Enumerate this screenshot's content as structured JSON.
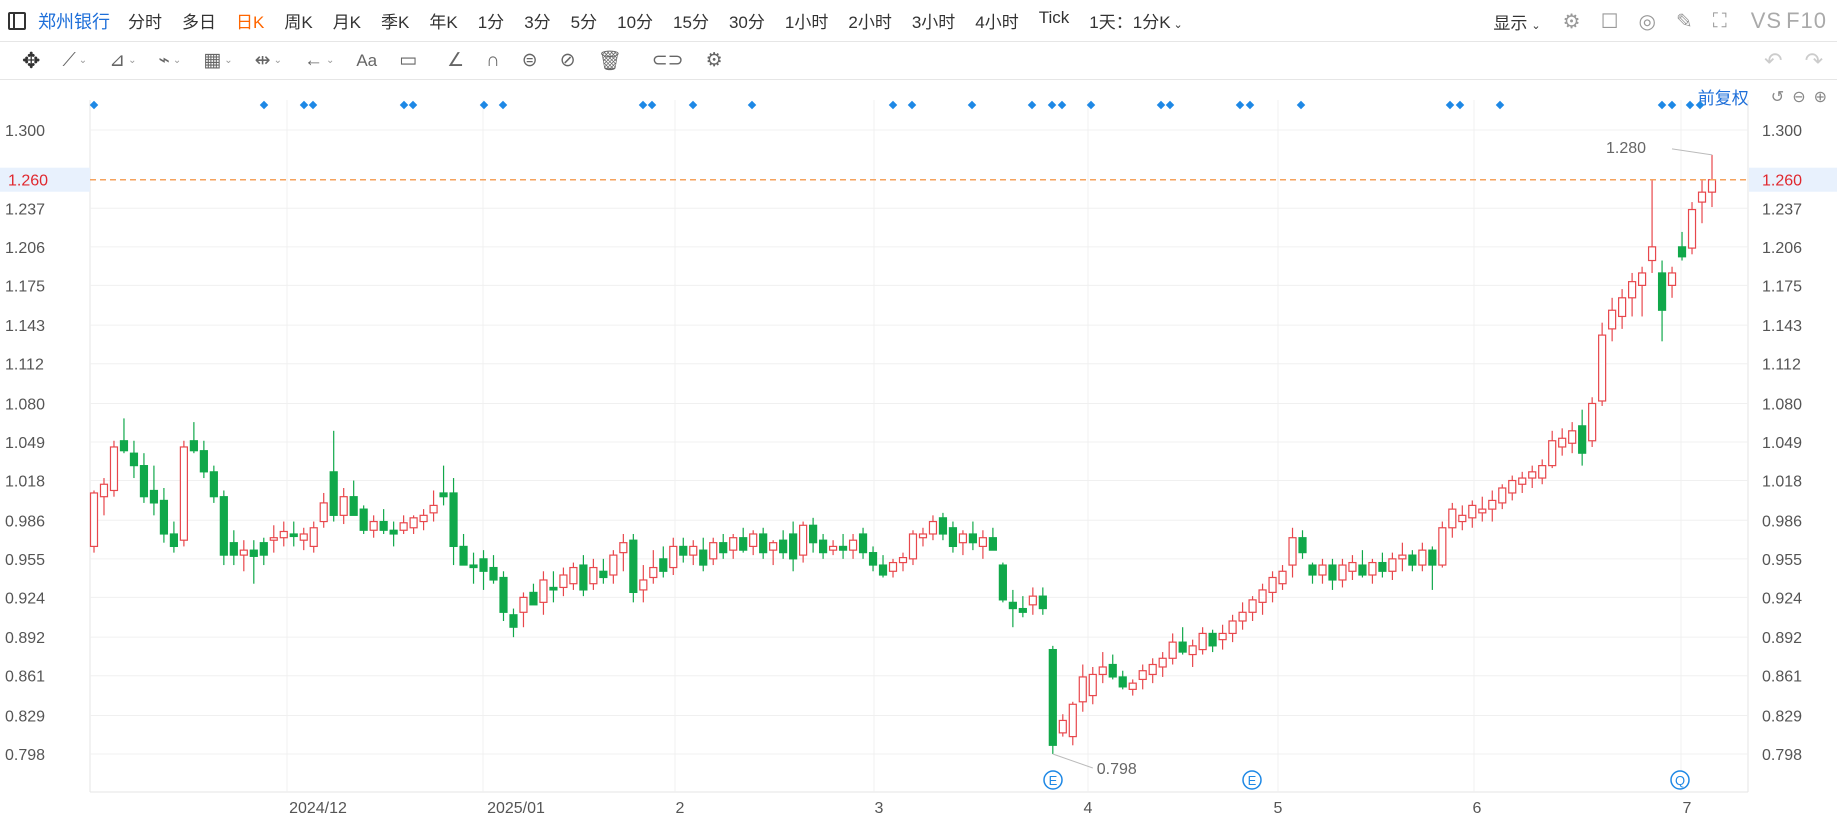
{
  "header": {
    "symbol": "郑州银行",
    "periods": [
      {
        "label": "分时"
      },
      {
        "label": "多日"
      },
      {
        "label": "日K",
        "active": true
      },
      {
        "label": "周K"
      },
      {
        "label": "月K"
      },
      {
        "label": "季K"
      },
      {
        "label": "年K"
      },
      {
        "label": "1分"
      },
      {
        "label": "3分"
      },
      {
        "label": "5分"
      },
      {
        "label": "10分"
      },
      {
        "label": "15分"
      },
      {
        "label": "30分"
      },
      {
        "label": "1小时"
      },
      {
        "label": "2小时"
      },
      {
        "label": "3小时"
      },
      {
        "label": "4小时"
      },
      {
        "label": "Tick"
      },
      {
        "label": "1天：1分K"
      }
    ],
    "display_label": "显示",
    "vs_label": "VS",
    "f10_label": "F10"
  },
  "adjust_label": "前复权",
  "colors": {
    "up": "#e8474c",
    "down": "#10a84a",
    "marker": "#1e88e5",
    "price_line": "#f5a25d",
    "accent": "#1e6fd9"
  },
  "chart_data": {
    "type": "candlestick",
    "ylim": [
      0.78,
      1.31
    ],
    "y_ticks": [
      0.798,
      0.829,
      0.861,
      0.892,
      0.924,
      0.955,
      0.986,
      1.018,
      1.049,
      1.08,
      1.112,
      1.143,
      1.175,
      1.206,
      1.237,
      1.3
    ],
    "current_price": 1.26,
    "x_labels": [
      "2024/12",
      "2025/01",
      "2",
      "3",
      "4",
      "5",
      "6",
      "7"
    ],
    "high_annotation": "1.280",
    "low_annotation": "0.798",
    "event_markers": [
      "E",
      "E",
      "Q"
    ],
    "ohlc": [
      [
        0.965,
        1.01,
        0.96,
        1.008
      ],
      [
        1.005,
        1.02,
        0.99,
        1.015
      ],
      [
        1.01,
        1.05,
        1.005,
        1.045
      ],
      [
        1.05,
        1.068,
        1.04,
        1.042
      ],
      [
        1.04,
        1.05,
        1.02,
        1.03
      ],
      [
        1.03,
        1.04,
        1.0,
        1.005
      ],
      [
        1.01,
        1.03,
        0.99,
        1.0
      ],
      [
        1.002,
        1.012,
        0.968,
        0.975
      ],
      [
        0.975,
        0.985,
        0.96,
        0.965
      ],
      [
        0.97,
        1.05,
        0.965,
        1.045
      ],
      [
        1.05,
        1.065,
        1.04,
        1.042
      ],
      [
        1.042,
        1.05,
        1.02,
        1.025
      ],
      [
        1.025,
        1.03,
        1.0,
        1.005
      ],
      [
        1.005,
        1.01,
        0.95,
        0.958
      ],
      [
        0.968,
        0.978,
        0.95,
        0.958
      ],
      [
        0.958,
        0.97,
        0.945,
        0.962
      ],
      [
        0.962,
        0.97,
        0.935,
        0.957
      ],
      [
        0.968,
        0.972,
        0.95,
        0.958
      ],
      [
        0.97,
        0.982,
        0.96,
        0.972
      ],
      [
        0.972,
        0.985,
        0.965,
        0.977
      ],
      [
        0.975,
        0.985,
        0.965,
        0.973
      ],
      [
        0.97,
        0.98,
        0.962,
        0.975
      ],
      [
        0.965,
        0.985,
        0.96,
        0.98
      ],
      [
        0.985,
        1.008,
        0.98,
        1.0
      ],
      [
        1.025,
        1.058,
        0.985,
        0.99
      ],
      [
        0.99,
        1.012,
        0.983,
        1.005
      ],
      [
        1.005,
        1.018,
        0.99,
        0.99
      ],
      [
        0.995,
        0.998,
        0.975,
        0.978
      ],
      [
        0.978,
        0.99,
        0.972,
        0.985
      ],
      [
        0.985,
        0.995,
        0.975,
        0.978
      ],
      [
        0.978,
        0.985,
        0.965,
        0.975
      ],
      [
        0.978,
        0.99,
        0.975,
        0.984
      ],
      [
        0.98,
        0.99,
        0.975,
        0.988
      ],
      [
        0.985,
        0.995,
        0.978,
        0.99
      ],
      [
        0.992,
        1.01,
        0.985,
        0.998
      ],
      [
        1.008,
        1.03,
        0.998,
        1.005
      ],
      [
        1.008,
        1.02,
        0.95,
        0.965
      ],
      [
        0.965,
        0.975,
        0.95,
        0.95
      ],
      [
        0.95,
        0.96,
        0.935,
        0.948
      ],
      [
        0.955,
        0.962,
        0.93,
        0.945
      ],
      [
        0.948,
        0.958,
        0.935,
        0.938
      ],
      [
        0.94,
        0.945,
        0.905,
        0.912
      ],
      [
        0.91,
        0.915,
        0.892,
        0.9
      ],
      [
        0.912,
        0.928,
        0.9,
        0.924
      ],
      [
        0.928,
        0.935,
        0.918,
        0.918
      ],
      [
        0.92,
        0.945,
        0.91,
        0.938
      ],
      [
        0.932,
        0.945,
        0.92,
        0.93
      ],
      [
        0.932,
        0.948,
        0.925,
        0.942
      ],
      [
        0.935,
        0.952,
        0.93,
        0.948
      ],
      [
        0.95,
        0.958,
        0.925,
        0.93
      ],
      [
        0.935,
        0.955,
        0.93,
        0.948
      ],
      [
        0.945,
        0.955,
        0.935,
        0.94
      ],
      [
        0.942,
        0.962,
        0.935,
        0.958
      ],
      [
        0.96,
        0.975,
        0.945,
        0.968
      ],
      [
        0.97,
        0.975,
        0.92,
        0.928
      ],
      [
        0.93,
        0.95,
        0.92,
        0.938
      ],
      [
        0.94,
        0.962,
        0.935,
        0.948
      ],
      [
        0.955,
        0.965,
        0.94,
        0.945
      ],
      [
        0.948,
        0.972,
        0.942,
        0.965
      ],
      [
        0.965,
        0.972,
        0.952,
        0.958
      ],
      [
        0.958,
        0.97,
        0.95,
        0.965
      ],
      [
        0.962,
        0.972,
        0.945,
        0.95
      ],
      [
        0.955,
        0.972,
        0.95,
        0.968
      ],
      [
        0.968,
        0.975,
        0.955,
        0.96
      ],
      [
        0.962,
        0.975,
        0.955,
        0.972
      ],
      [
        0.972,
        0.98,
        0.96,
        0.962
      ],
      [
        0.965,
        0.978,
        0.958,
        0.975
      ],
      [
        0.975,
        0.98,
        0.955,
        0.96
      ],
      [
        0.962,
        0.97,
        0.95,
        0.968
      ],
      [
        0.97,
        0.978,
        0.955,
        0.96
      ],
      [
        0.975,
        0.985,
        0.945,
        0.955
      ],
      [
        0.958,
        0.985,
        0.952,
        0.982
      ],
      [
        0.982,
        0.988,
        0.96,
        0.968
      ],
      [
        0.97,
        0.975,
        0.955,
        0.96
      ],
      [
        0.962,
        0.97,
        0.958,
        0.965
      ],
      [
        0.965,
        0.975,
        0.955,
        0.962
      ],
      [
        0.962,
        0.975,
        0.955,
        0.97
      ],
      [
        0.975,
        0.98,
        0.955,
        0.96
      ],
      [
        0.96,
        0.965,
        0.945,
        0.95
      ],
      [
        0.95,
        0.958,
        0.94,
        0.942
      ],
      [
        0.945,
        0.955,
        0.94,
        0.952
      ],
      [
        0.952,
        0.96,
        0.945,
        0.956
      ],
      [
        0.955,
        0.978,
        0.95,
        0.975
      ],
      [
        0.972,
        0.98,
        0.965,
        0.975
      ],
      [
        0.975,
        0.99,
        0.97,
        0.985
      ],
      [
        0.988,
        0.992,
        0.97,
        0.975
      ],
      [
        0.98,
        0.985,
        0.96,
        0.965
      ],
      [
        0.968,
        0.978,
        0.958,
        0.975
      ],
      [
        0.975,
        0.985,
        0.962,
        0.968
      ],
      [
        0.965,
        0.978,
        0.955,
        0.972
      ],
      [
        0.972,
        0.98,
        0.962,
        0.962
      ],
      [
        0.95,
        0.952,
        0.92,
        0.922
      ],
      [
        0.92,
        0.93,
        0.9,
        0.915
      ],
      [
        0.915,
        0.925,
        0.908,
        0.912
      ],
      [
        0.918,
        0.932,
        0.91,
        0.925
      ],
      [
        0.925,
        0.932,
        0.91,
        0.915
      ],
      [
        0.882,
        0.885,
        0.798,
        0.805
      ],
      [
        0.815,
        0.83,
        0.812,
        0.825
      ],
      [
        0.812,
        0.84,
        0.805,
        0.838
      ],
      [
        0.84,
        0.87,
        0.832,
        0.86
      ],
      [
        0.845,
        0.868,
        0.838,
        0.862
      ],
      [
        0.862,
        0.88,
        0.855,
        0.868
      ],
      [
        0.87,
        0.878,
        0.858,
        0.86
      ],
      [
        0.86,
        0.865,
        0.85,
        0.852
      ],
      [
        0.85,
        0.858,
        0.845,
        0.855
      ],
      [
        0.858,
        0.87,
        0.85,
        0.865
      ],
      [
        0.862,
        0.875,
        0.855,
        0.87
      ],
      [
        0.868,
        0.88,
        0.86,
        0.875
      ],
      [
        0.875,
        0.895,
        0.87,
        0.888
      ],
      [
        0.888,
        0.9,
        0.878,
        0.88
      ],
      [
        0.878,
        0.89,
        0.868,
        0.885
      ],
      [
        0.882,
        0.9,
        0.878,
        0.895
      ],
      [
        0.895,
        0.898,
        0.88,
        0.885
      ],
      [
        0.89,
        0.902,
        0.882,
        0.895
      ],
      [
        0.895,
        0.91,
        0.888,
        0.905
      ],
      [
        0.905,
        0.92,
        0.898,
        0.912
      ],
      [
        0.912,
        0.925,
        0.905,
        0.922
      ],
      [
        0.92,
        0.935,
        0.91,
        0.93
      ],
      [
        0.928,
        0.945,
        0.92,
        0.94
      ],
      [
        0.935,
        0.95,
        0.93,
        0.945
      ],
      [
        0.95,
        0.98,
        0.94,
        0.972
      ],
      [
        0.972,
        0.978,
        0.955,
        0.96
      ],
      [
        0.95,
        0.952,
        0.935,
        0.942
      ],
      [
        0.942,
        0.955,
        0.935,
        0.95
      ],
      [
        0.95,
        0.955,
        0.93,
        0.938
      ],
      [
        0.938,
        0.955,
        0.932,
        0.95
      ],
      [
        0.945,
        0.958,
        0.938,
        0.952
      ],
      [
        0.95,
        0.962,
        0.94,
        0.942
      ],
      [
        0.942,
        0.955,
        0.935,
        0.952
      ],
      [
        0.952,
        0.96,
        0.94,
        0.945
      ],
      [
        0.945,
        0.96,
        0.938,
        0.955
      ],
      [
        0.955,
        0.968,
        0.945,
        0.958
      ],
      [
        0.958,
        0.962,
        0.945,
        0.95
      ],
      [
        0.95,
        0.968,
        0.945,
        0.962
      ],
      [
        0.962,
        0.965,
        0.93,
        0.95
      ],
      [
        0.95,
        0.985,
        0.948,
        0.98
      ],
      [
        0.98,
        1.0,
        0.972,
        0.995
      ],
      [
        0.985,
        0.998,
        0.978,
        0.99
      ],
      [
        0.988,
        1.002,
        0.98,
        0.998
      ],
      [
        0.992,
        1.005,
        0.985,
        0.995
      ],
      [
        0.995,
        1.01,
        0.985,
        1.002
      ],
      [
        1.0,
        1.015,
        0.995,
        1.012
      ],
      [
        1.008,
        1.022,
        1.002,
        1.018
      ],
      [
        1.015,
        1.025,
        1.008,
        1.02
      ],
      [
        1.02,
        1.03,
        1.012,
        1.025
      ],
      [
        1.02,
        1.035,
        1.015,
        1.03
      ],
      [
        1.03,
        1.058,
        1.028,
        1.05
      ],
      [
        1.045,
        1.06,
        1.038,
        1.052
      ],
      [
        1.048,
        1.065,
        1.04,
        1.058
      ],
      [
        1.062,
        1.075,
        1.03,
        1.04
      ],
      [
        1.05,
        1.085,
        1.045,
        1.08
      ],
      [
        1.082,
        1.145,
        1.078,
        1.135
      ],
      [
        1.14,
        1.165,
        1.13,
        1.155
      ],
      [
        1.15,
        1.172,
        1.14,
        1.165
      ],
      [
        1.165,
        1.185,
        1.15,
        1.178
      ],
      [
        1.175,
        1.19,
        1.15,
        1.185
      ],
      [
        1.195,
        1.26,
        1.185,
        1.206
      ],
      [
        1.185,
        1.195,
        1.13,
        1.155
      ],
      [
        1.175,
        1.19,
        1.165,
        1.185
      ],
      [
        1.206,
        1.218,
        1.195,
        1.198
      ],
      [
        1.205,
        1.242,
        1.2,
        1.236
      ],
      [
        1.242,
        1.26,
        1.225,
        1.25
      ],
      [
        1.25,
        1.28,
        1.238,
        1.26
      ]
    ]
  }
}
